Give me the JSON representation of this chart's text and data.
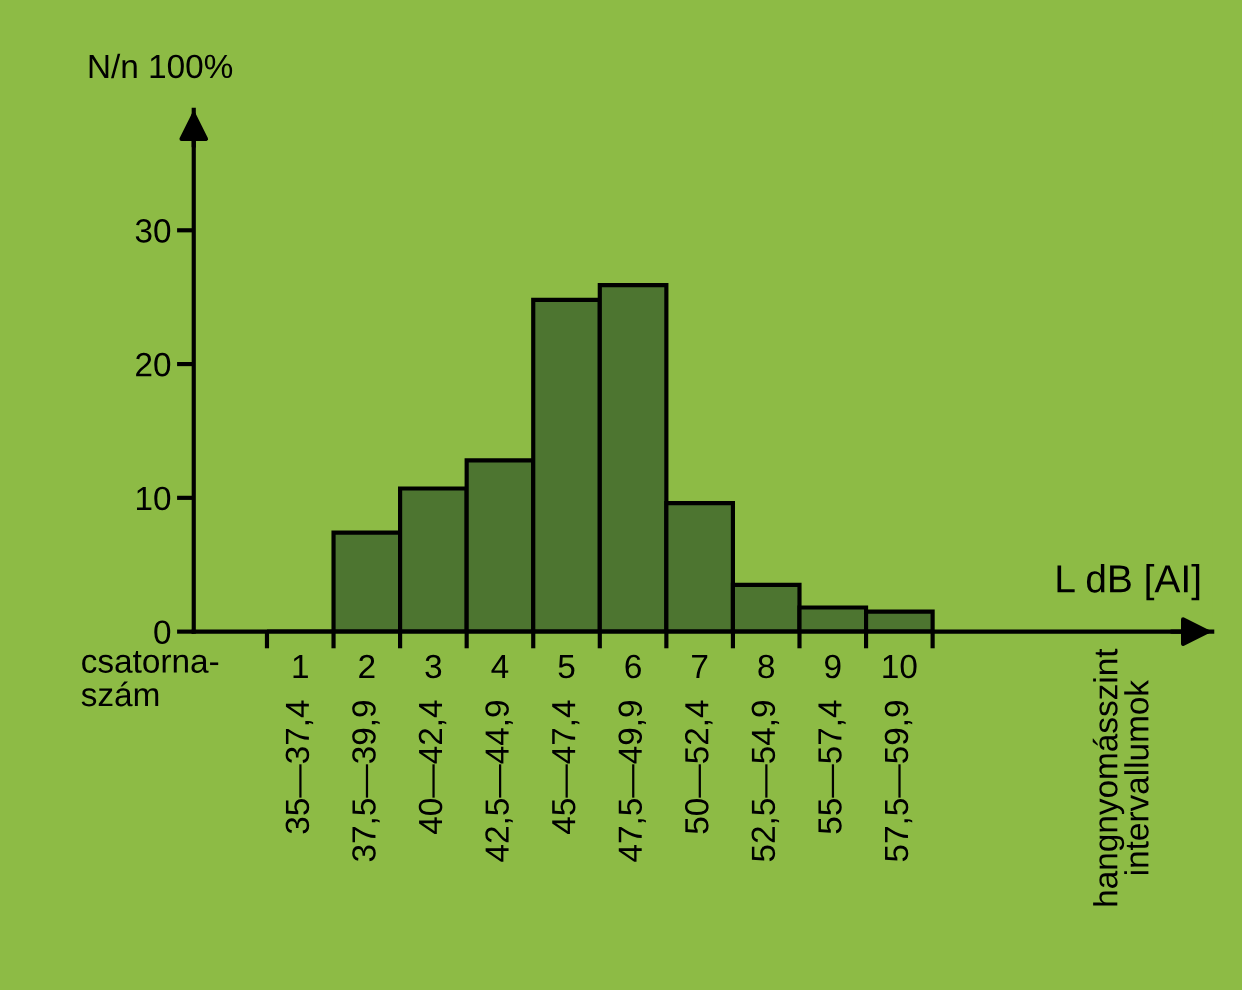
{
  "chart_data": {
    "type": "bar",
    "ylabel": "N/n 100%",
    "xlabel": "L dB [AI]",
    "categories": [
      "1",
      "2",
      "3",
      "4",
      "5",
      "6",
      "7",
      "8",
      "9",
      "10"
    ],
    "values": [
      0,
      7.4,
      10.7,
      12.8,
      24.8,
      25.9,
      9.6,
      3.5,
      1.8,
      1.5
    ],
    "color": "#4d7530",
    "ylim": [
      0,
      39
    ],
    "yticks": [
      0,
      10,
      20,
      30
    ],
    "grid": false,
    "legend": false,
    "annotations": [
      "35—37,4",
      "37,5—39,9",
      "40—42,4",
      "42,5—44,9",
      "45—47,4",
      "47,5—49,9",
      "50—52,4",
      "52,5—54,9",
      "55—57,4",
      "57,5—59,9",
      "csatorna-\nszám",
      "hangnyomásszint\nintervallumok"
    ]
  }
}
